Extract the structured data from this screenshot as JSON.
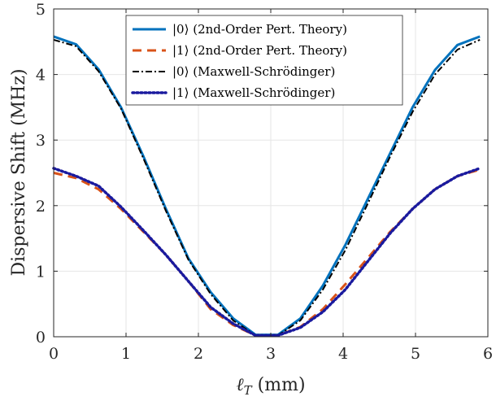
{
  "chart_data": {
    "type": "line",
    "xlabel": "ℓ_T (mm)",
    "xlabel_main": "ℓ",
    "xlabel_sub": "T",
    "xlabel_rest": " (mm)",
    "ylabel": "Dispersive Shift (MHz)",
    "xlim": [
      0,
      6
    ],
    "ylim": [
      0,
      5
    ],
    "x_ticks": [
      "0",
      "1",
      "2",
      "3",
      "4",
      "5",
      "6"
    ],
    "y_ticks": [
      "0",
      "1",
      "2",
      "3",
      "4",
      "5"
    ],
    "grid": true,
    "legend_position": "top-center",
    "series": [
      {
        "name": "|0⟩ (2nd-Order Pert. Theory)",
        "color": "#0072BD",
        "style": "solid",
        "x": [
          0,
          0.31,
          0.62,
          0.93,
          1.24,
          1.55,
          1.86,
          2.17,
          2.48,
          2.79,
          3.1,
          3.41,
          3.72,
          4.03,
          4.34,
          4.65,
          4.96,
          5.27,
          5.58,
          5.89
        ],
        "y": [
          4.58,
          4.46,
          4.08,
          3.5,
          2.75,
          1.95,
          1.2,
          0.68,
          0.28,
          0.03,
          0.03,
          0.28,
          0.78,
          1.4,
          2.1,
          2.8,
          3.5,
          4.07,
          4.45,
          4.58
        ]
      },
      {
        "name": "|1⟩ (2nd-Order Pert. Theory)",
        "color": "#D95319",
        "style": "dashed",
        "x": [
          0,
          0.31,
          0.62,
          0.93,
          1.24,
          1.55,
          1.86,
          2.17,
          2.48,
          2.79,
          3.1,
          3.41,
          3.72,
          4.03,
          4.34,
          4.65,
          4.96,
          5.27,
          5.58,
          5.89
        ],
        "y": [
          2.5,
          2.42,
          2.25,
          1.95,
          1.6,
          1.25,
          0.85,
          0.42,
          0.18,
          0.02,
          0.02,
          0.15,
          0.42,
          0.8,
          1.2,
          1.6,
          1.95,
          2.25,
          2.45,
          2.55
        ]
      },
      {
        "name": "|0⟩ (Maxwell-Schrödinger)",
        "color": "#000000",
        "style": "dashdot",
        "x": [
          0,
          0.31,
          0.62,
          0.93,
          1.24,
          1.55,
          1.86,
          2.17,
          2.48,
          2.79,
          3.1,
          3.41,
          3.72,
          4.03,
          4.34,
          4.65,
          4.96,
          5.27,
          5.58,
          5.89
        ],
        "y": [
          4.53,
          4.43,
          4.05,
          3.48,
          2.72,
          1.92,
          1.18,
          0.65,
          0.25,
          0.02,
          0.02,
          0.25,
          0.72,
          1.32,
          2.03,
          2.75,
          3.43,
          4.0,
          4.38,
          4.53
        ]
      },
      {
        "name": "|1⟩ (Maxwell-Schrödinger)",
        "color": "#1A1A9E",
        "style": "dotted",
        "x": [
          0,
          0.31,
          0.62,
          0.93,
          1.24,
          1.55,
          1.86,
          2.17,
          2.48,
          2.79,
          3.1,
          3.41,
          3.72,
          4.03,
          4.34,
          4.65,
          4.96,
          5.27,
          5.58,
          5.89
        ],
        "y": [
          2.57,
          2.45,
          2.3,
          1.98,
          1.62,
          1.25,
          0.85,
          0.45,
          0.2,
          0.02,
          0.02,
          0.14,
          0.38,
          0.72,
          1.15,
          1.58,
          1.95,
          2.25,
          2.45,
          2.57
        ]
      }
    ]
  }
}
